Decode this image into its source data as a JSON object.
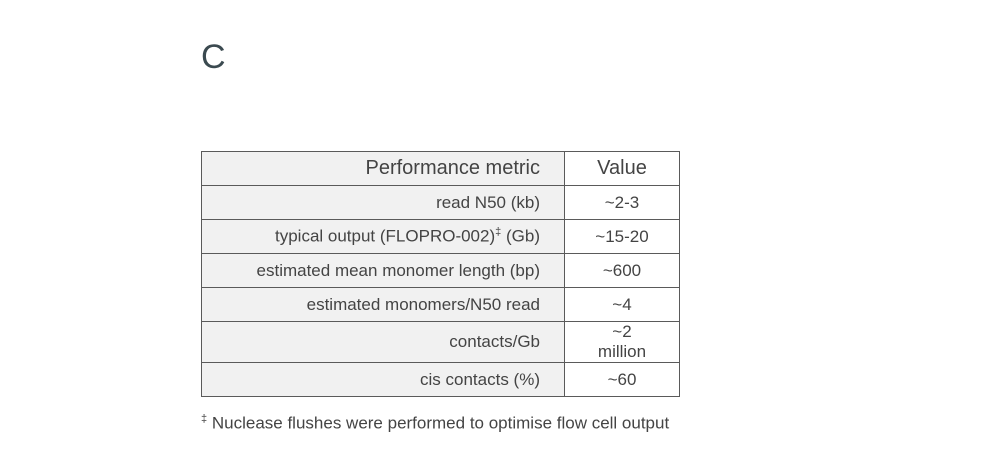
{
  "panel_label": "C",
  "table": {
    "header": [
      "Performance metric",
      "Value"
    ],
    "rows": [
      {
        "metric": [
          "read N50 (kb)"
        ],
        "value": "~2-3"
      },
      {
        "metric": [
          "typical output (FLOPRO-002)",
          "‡",
          " (Gb)"
        ],
        "value": "~15-20"
      },
      {
        "metric": [
          "estimated mean monomer length (bp)"
        ],
        "value": "~600"
      },
      {
        "metric": [
          "estimated monomers/N50 read"
        ],
        "value": "~4"
      },
      {
        "metric": [
          "contacts/Gb"
        ],
        "value": "~2 million"
      },
      {
        "metric": [
          "cis contacts (%)"
        ],
        "value": "~60"
      }
    ]
  },
  "footnote": {
    "mark": "‡",
    "text": "Nuclease flushes were performed to optimise flow cell output"
  }
}
